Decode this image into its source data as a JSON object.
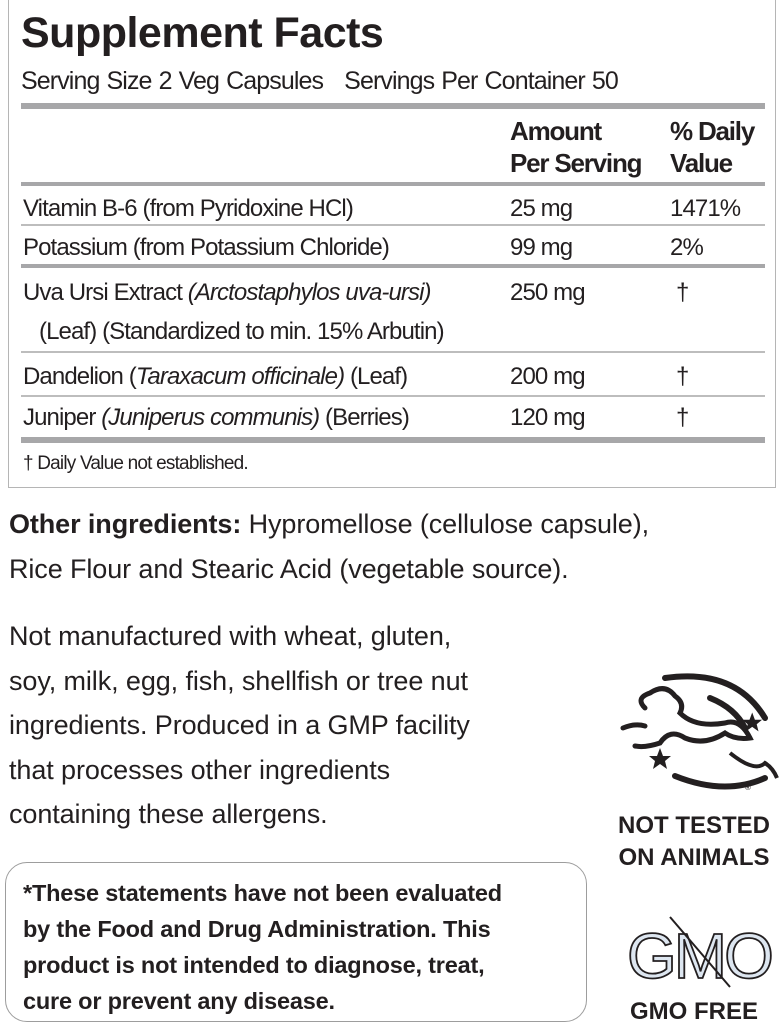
{
  "title": "Supplement Facts",
  "serving_size": "Serving Size 2 Veg Capsules",
  "servings_per_container": "Servings Per Container 50",
  "headers": {
    "amount_1": "Amount",
    "amount_2": "Per Serving",
    "dv_1": "% Daily",
    "dv_2": "Value"
  },
  "rows": [
    {
      "name": "Vitamin B-6 (from Pyridoxine HCl)",
      "amount": "25 mg",
      "dv": "1471%"
    },
    {
      "name": "Potassium (from Potassium Chloride)",
      "amount": "99 mg",
      "dv": "2%"
    },
    {
      "name_plain": "Uva Ursi Extract ",
      "name_italic": "(Arctostaphylos uva-ursi)",
      "name_line2": "(Leaf) (Standardized to min. 15% Arbutin)",
      "amount": "250 mg",
      "dv": "†"
    },
    {
      "name_plain": "Dandelion (",
      "name_italic": "Taraxacum officinale)",
      "name_after": " (Leaf)",
      "amount": "200 mg",
      "dv": "†"
    },
    {
      "name_plain": "Juniper ",
      "name_italic": "(Juniperus communis)",
      "name_after": " (Berries)",
      "amount": "120 mg",
      "dv": "†"
    }
  ],
  "footnote": "† Daily Value not established.",
  "other_ingredients": {
    "label": "Other ingredients:",
    "text": " Hypromellose (cellulose capsule),",
    "line2": "Rice Flour and Stearic Acid (vegetable source)."
  },
  "allergen_lines": [
    "Not manufactured with wheat, gluten,",
    "soy, milk, egg, fish, shellfish or tree nut",
    "ingredients. Produced in a GMP facility",
    "that processes other ingredients",
    "containing these allergens."
  ],
  "disclaimer_lines": [
    "*These statements have not been evaluated",
    "by the Food and Drug Administration. This",
    "product is not intended to diagnose, treat,",
    "cure or prevent any disease."
  ],
  "logos": {
    "cruelty_free_icon": "leaping-bunny-icon",
    "cruelty_free_line1": "NOT TESTED",
    "cruelty_free_line2": "ON ANIMALS",
    "gmo_icon": "gmo-crossed-icon",
    "gmo_mark": "GMO",
    "gmo_label": "GMO FREE"
  },
  "colors": {
    "text": "#231f20",
    "rule": "#a7a7a9",
    "gmo_fill": "#dde6f0"
  }
}
